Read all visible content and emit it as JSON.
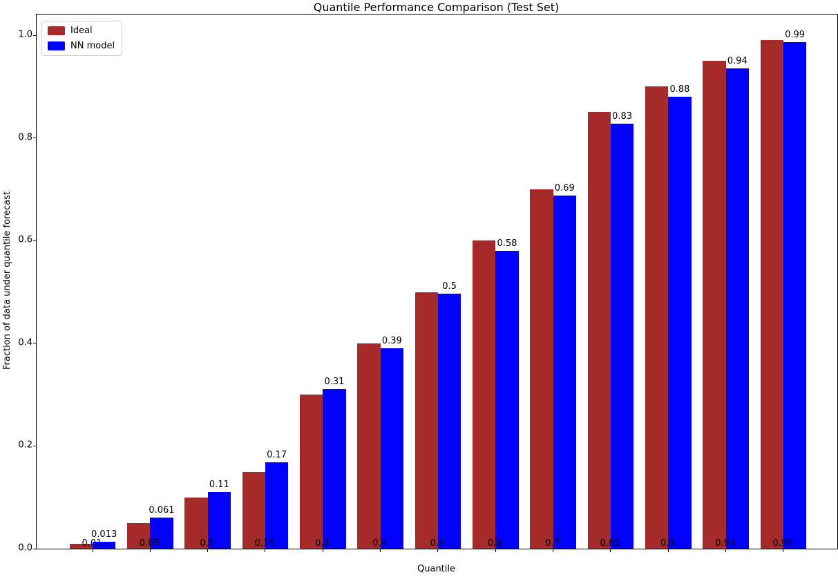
{
  "chart_data": {
    "type": "bar",
    "title": "Quantile Performance Comparison (Test Set)",
    "xlabel": "Quantile",
    "ylabel": "Fraction of data under quantile forecast",
    "categories": [
      "0.01",
      "0.05",
      "0.1",
      "0.15",
      "0.3",
      "0.4",
      "0.5",
      "0.6",
      "0.7",
      "0.85",
      "0.9",
      "0.95",
      "0.99"
    ],
    "series": [
      {
        "name": "Ideal",
        "color": "#A52A2A",
        "values": [
          0.01,
          0.05,
          0.1,
          0.15,
          0.3,
          0.4,
          0.5,
          0.6,
          0.7,
          0.85,
          0.9,
          0.95,
          0.99
        ]
      },
      {
        "name": "NN model",
        "color": "#0000FF",
        "values": [
          0.013,
          0.061,
          0.11,
          0.168,
          0.311,
          0.39,
          0.497,
          0.58,
          0.688,
          0.828,
          0.88,
          0.936,
          0.986
        ]
      }
    ],
    "bar_labels": [
      "0.013",
      "0.061",
      "0.11",
      "0.17",
      "0.31",
      "0.39",
      "0.5",
      "0.58",
      "0.69",
      "0.83",
      "0.88",
      "0.94",
      "0.99"
    ],
    "yticks": [
      0.0,
      0.2,
      0.4,
      0.6,
      0.8,
      1.0
    ],
    "ytick_labels": [
      "0.0",
      "0.2",
      "0.4",
      "0.6",
      "0.8",
      "1.0"
    ],
    "ylim": [
      0,
      1.0404
    ],
    "legend_position": "upper left",
    "grid": false
  }
}
